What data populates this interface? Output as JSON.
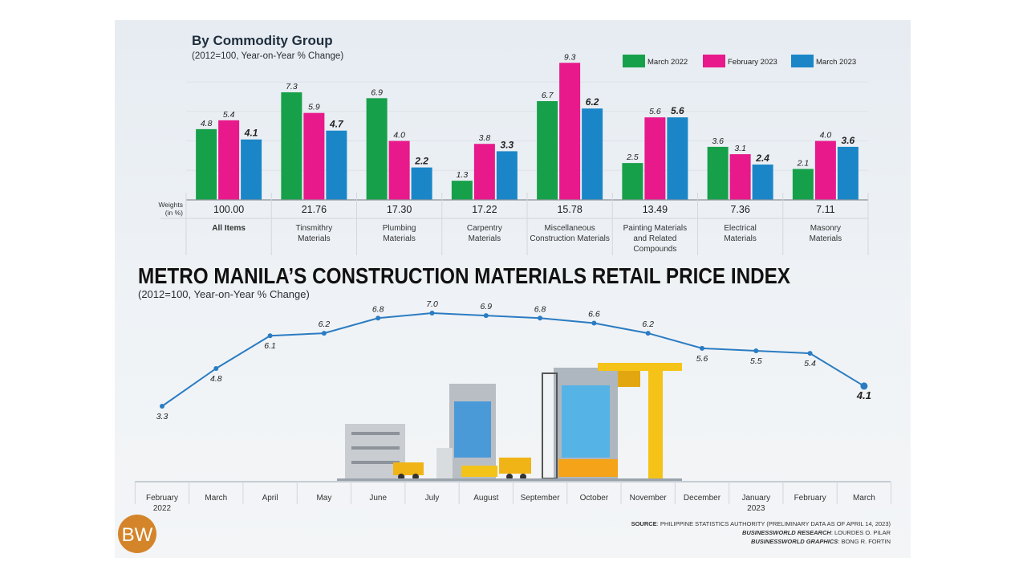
{
  "colors": {
    "march_2022": "#17a04a",
    "february_2023": "#e8198b",
    "march_2023": "#1a86c8",
    "line": "#2b7cc2",
    "logo": "#d4852a"
  },
  "chart_data": [
    {
      "type": "bar",
      "title": "By Commodity Group",
      "subtitle": "(2012=100, Year-on-Year % Change)",
      "weights_label": [
        "Weights",
        "(in %)"
      ],
      "categories": [
        [
          "All Items"
        ],
        [
          "Tinsmithry",
          "Materials"
        ],
        [
          "Plumbing",
          "Materials"
        ],
        [
          "Carpentry",
          "Materials"
        ],
        [
          "Miscellaneous",
          "Construction Materials"
        ],
        [
          "Painting Materials",
          "and Related",
          "Compounds"
        ],
        [
          "Electrical",
          "Materials"
        ],
        [
          "Masonry",
          "Materials"
        ]
      ],
      "weights": [
        "100.00",
        "21.76",
        "17.30",
        "17.22",
        "15.78",
        "13.49",
        "7.36",
        "7.11"
      ],
      "series": [
        {
          "name": "March 2022",
          "values": [
            4.8,
            7.3,
            6.9,
            1.3,
            6.7,
            2.5,
            3.6,
            2.1
          ]
        },
        {
          "name": "February 2023",
          "values": [
            5.4,
            5.9,
            4.0,
            3.8,
            9.3,
            5.6,
            3.1,
            4.0
          ]
        },
        {
          "name": "March 2023",
          "values": [
            4.1,
            4.7,
            2.2,
            3.3,
            6.2,
            5.6,
            2.4,
            3.6
          ]
        }
      ],
      "legend": "top-right",
      "grid": true,
      "ylim": [
        0,
        10
      ]
    },
    {
      "type": "line",
      "title": "METRO MANILA’S CONSTRUCTION MATERIALS RETAIL PRICE INDEX",
      "subtitle": "(2012=100, Year-on-Year % Change)",
      "categories": [
        [
          "February",
          "2022"
        ],
        [
          "March"
        ],
        [
          "April"
        ],
        [
          "May"
        ],
        [
          "June"
        ],
        [
          "July"
        ],
        [
          "August"
        ],
        [
          "September"
        ],
        [
          "October"
        ],
        [
          "November"
        ],
        [
          "December"
        ],
        [
          "January",
          "2023"
        ],
        [
          "February"
        ],
        [
          "March"
        ]
      ],
      "values": [
        3.3,
        4.8,
        6.1,
        6.2,
        6.8,
        7.0,
        6.9,
        6.8,
        6.6,
        6.2,
        5.6,
        5.5,
        5.4,
        4.1
      ],
      "grid": false
    }
  ],
  "footer": {
    "source_label": "SOURCE",
    "source_text": ": PHILIPPINE STATISTICS AUTHORITY (PRELIMINARY DATA AS OF APRIL 14, 2023)",
    "research_label": "BUSINESSWORLD RESEARCH",
    "research_text": ": LOURDES O. PILAR",
    "graphics_label": "BUSINESSWORLD GRAPHICS",
    "graphics_text": ": BONG R. FORTIN"
  },
  "logo": {
    "text": "BW"
  }
}
